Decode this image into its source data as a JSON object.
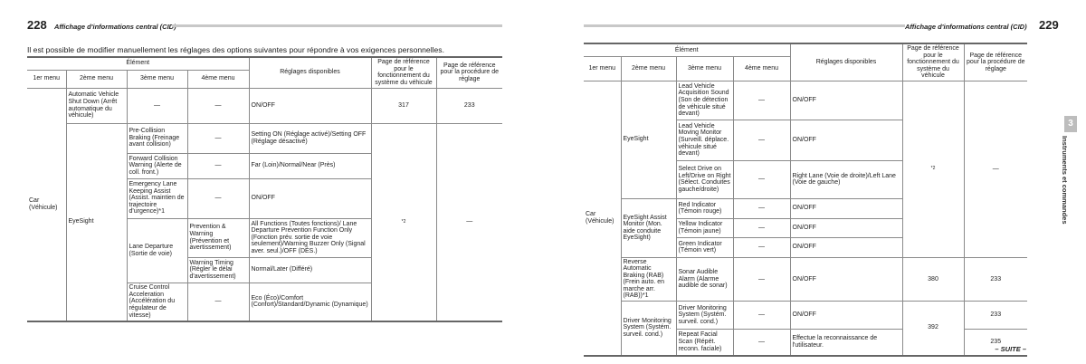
{
  "left_page": {
    "page_number": "228",
    "running_title": "Affichage d'informations central (CID)",
    "intro": "Il est possible de modifier manuellement les réglages des options suivantes pour répondre à vos exigences personnelles.",
    "headers": {
      "element": "Élément",
      "menu1": "1er menu",
      "menu2": "2ème menu",
      "menu3": "3ème menu",
      "menu4": "4ème menu",
      "settings": "Réglages disponibles",
      "ref_system": "Page de référence pour le fonctionnement du système du véhicule",
      "ref_procedure": "Page de référence pour la procédure de réglage"
    },
    "menu1": "Car (Véhicule)",
    "rows": [
      {
        "menu2": "Automatic Vehicle Shut Down (Arrêt automatique du véhicule)",
        "menu3": "—",
        "menu4": "—",
        "settings": "ON/OFF",
        "ref_system": "317",
        "ref_procedure": "233"
      },
      {
        "menu2": "EyeSight",
        "menu3": "Pre-Collision Braking (Freinage avant collision)",
        "menu4": "—",
        "settings": "Setting ON (Réglage activé)/Setting OFF (Réglage désactivé)",
        "ref_system": "*2",
        "ref_procedure": "—"
      },
      {
        "menu3": "Forward Collision Warning (Alerte de coll. front.)",
        "menu4": "—",
        "settings": "Far (Loin)/Normal/Near (Près)"
      },
      {
        "menu3": "Emergency Lane Keeping Assist (Assist. maintien de trajectoire d'urgence)*1",
        "menu4": "—",
        "settings": "ON/OFF"
      },
      {
        "menu3": "Lane Departure (Sortie de voie)",
        "menu4": "Prevention & Warning (Prévention et avertissement)",
        "settings": "All Functions (Toutes fonctions)/ Lane Departure Prevention Function Only (Fonction prév. sortie de voie seulement)/Warning Buzzer Only (Signal aver. seul.)/OFF (DÉS.)"
      },
      {
        "menu4": "Warning Timing (Régler le délai d'avertissement)",
        "settings": "Normal/Later (Différé)"
      },
      {
        "menu3": "Cruise Control Acceleration (Accélération du régulateur de vitesse)",
        "menu4": "—",
        "settings": "Eco (Éco)/Comfort (Confort)/Standard/Dynamic (Dynamique)"
      }
    ]
  },
  "right_page": {
    "page_number": "229",
    "running_title": "Affichage d'informations central (CID)",
    "chapter_number": "3",
    "chapter_title": "Instruments et commandes",
    "continued": "– SUITE –",
    "menu1": "Car (Véhicule)",
    "rows": [
      {
        "menu2": "EyeSight",
        "menu3": "Lead Vehicle Acquisition Sound (Son de détection de véhicule situé devant)",
        "menu4": "—",
        "settings": "ON/OFF",
        "ref_system": "*2",
        "ref_procedure": "—"
      },
      {
        "menu3": "Lead Vehicle Moving Monitor (Surveill. déplace. véhicule situé devant)",
        "menu4": "—",
        "settings": "ON/OFF"
      },
      {
        "menu3": "Select Drive on Left/Drive on Right (Sélect. Conduites gauche/droite)",
        "menu4": "—",
        "settings": "Right Lane (Voie de droite)/Left Lane (Voie de gauche)"
      },
      {
        "menu2": "EyeSight Assist Monitor (Mon. aide conduite EyeSight)",
        "menu3": "Red Indicator (Témoin rouge)",
        "menu4": "—",
        "settings": "ON/OFF"
      },
      {
        "menu3": "Yellow Indicator (Témoin jaune)",
        "menu4": "—",
        "settings": "ON/OFF"
      },
      {
        "menu3": "Green Indicator (Témoin vert)",
        "menu4": "—",
        "settings": "ON/OFF"
      },
      {
        "menu2": "Reverse Automatic Braking (RAB) (Frein auto. en marche arr. (RAB))*1",
        "menu3": "Sonar Audible Alarm (Alarme audible de sonar)",
        "menu4": "—",
        "settings": "ON/OFF",
        "ref_system": "380",
        "ref_procedure": "233"
      },
      {
        "menu2": "Driver Monitoring System (Systém. surveil. cond.)",
        "menu3": "Driver Monitoring System (Systém. surveil. cond.)",
        "menu4": "—",
        "settings": "ON/OFF",
        "ref_system": "392",
        "ref_procedure": "233"
      },
      {
        "menu3": "Repeat Facial Scan (Répét. reconn. faciale)",
        "menu4": "—",
        "settings": "Effectue la reconnaissance de l'utilisateur.",
        "ref_procedure": "235"
      }
    ]
  }
}
